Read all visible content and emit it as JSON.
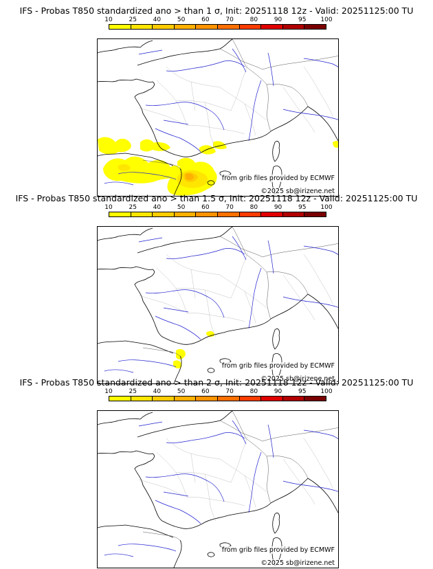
{
  "colorbar": {
    "ticks": [
      "10",
      "25",
      "40",
      "50",
      "60",
      "70",
      "80",
      "90",
      "95",
      "100"
    ],
    "colors": [
      "#ffff00",
      "#ffe600",
      "#ffcc00",
      "#ffb000",
      "#ff9400",
      "#ff7000",
      "#ff3c00",
      "#e00000",
      "#b00000",
      "#7a0000"
    ]
  },
  "panels": [
    {
      "title": "IFS - Probas T850  standardized ano > than 1 σ, Init: 20251118 12z - Valid: 20251125:00 TU",
      "threshold_sigma": 1,
      "credit_source": "from grib files provided by ECMWF",
      "credit_copyright": "©2025 sb@irizene.net"
    },
    {
      "title": "IFS - Probas T850  standardized ano > than 1.5 σ, Init: 20251118 12z - Valid: 20251125:00 TU",
      "threshold_sigma": 1.5,
      "credit_source": "from grib files provided by ECMWF",
      "credit_copyright": "©2025 sb@irizene.net"
    },
    {
      "title": "IFS - Probas T850  standardized ano > than 2 σ, Init: 20251118 12z - Valid: 20251125:00 TU",
      "threshold_sigma": 2,
      "credit_source": "from grib files provided by ECMWF",
      "credit_copyright": "©2025 sb@irizene.net"
    }
  ]
}
